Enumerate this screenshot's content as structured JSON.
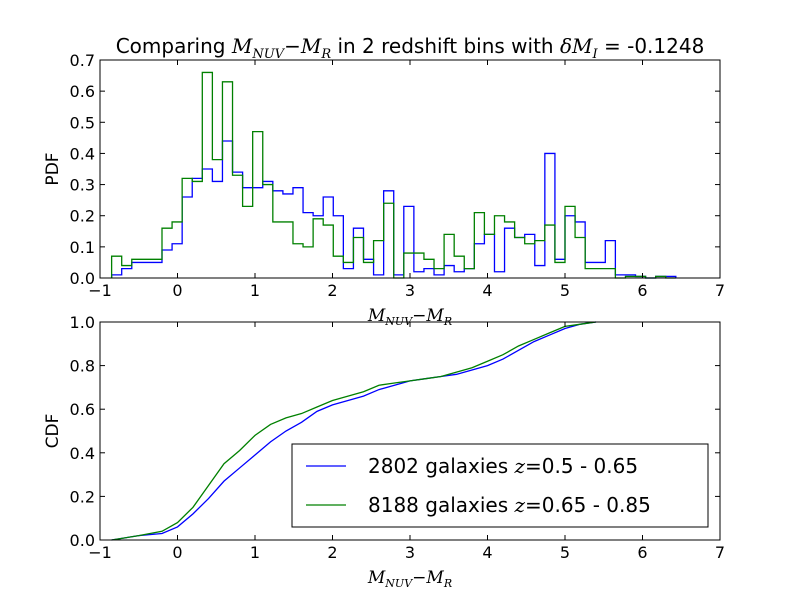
{
  "figure": {
    "title_prefix": "Comparing ",
    "title_math": "M",
    "title_math_sub1": "NUV",
    "title_math_minus": "−",
    "title_math_m2": "M",
    "title_math_sub2": "R",
    "title_middle": " in 2 redshift bins with ",
    "title_delta": "δM",
    "title_delta_sub": "I",
    "title_suffix": " = -0.1248"
  },
  "colors": {
    "blue": "#0000ff",
    "green": "#008000",
    "axes": "#000000",
    "background": "#ffffff"
  },
  "chart_data": [
    {
      "type": "bar",
      "subtype": "step-histogram",
      "ylabel": "PDF",
      "xlabel_parts": {
        "m1": "M",
        "sub1": "NUV",
        "minus": "−",
        "m2": "M",
        "sub2": "R"
      },
      "xlim": [
        -1,
        7
      ],
      "ylim": [
        0,
        0.7
      ],
      "xticks": [
        "−1",
        "0",
        "1",
        "2",
        "3",
        "4",
        "5",
        "6",
        "7"
      ],
      "yticks": [
        "0.0",
        "0.1",
        "0.2",
        "0.3",
        "0.4",
        "0.5",
        "0.6",
        "0.7"
      ],
      "bin_edges": [
        -0.85,
        -0.72,
        -0.59,
        -0.46,
        -0.33,
        -0.2,
        -0.07,
        0.06,
        0.19,
        0.32,
        0.45,
        0.58,
        0.71,
        0.84,
        0.97,
        1.1,
        1.23,
        1.36,
        1.49,
        1.62,
        1.75,
        1.88,
        2.01,
        2.14,
        2.27,
        2.4,
        2.53,
        2.66,
        2.79,
        2.92,
        3.05,
        3.18,
        3.31,
        3.44,
        3.57,
        3.7,
        3.83,
        3.96,
        4.09,
        4.22,
        4.35,
        4.48,
        4.61,
        4.74,
        4.87,
        5.0,
        5.13,
        5.26,
        5.39,
        5.52,
        5.65,
        5.78,
        5.91,
        6.04,
        6.17,
        6.3,
        6.43
      ],
      "series": [
        {
          "color": "blue",
          "values": [
            0.01,
            0.03,
            0.05,
            0.05,
            0.05,
            0.09,
            0.11,
            0.26,
            0.32,
            0.35,
            0.31,
            0.44,
            0.34,
            0.29,
            0.29,
            0.31,
            0.28,
            0.27,
            0.29,
            0.21,
            0.2,
            0.26,
            0.2,
            0.03,
            0.16,
            0.06,
            0.01,
            0.28,
            0.01,
            0.23,
            0.02,
            0.03,
            0.01,
            0.04,
            0.02,
            0.03,
            0.11,
            0.14,
            0.02,
            0.16,
            0.13,
            0.14,
            0.04,
            0.4,
            0.06,
            0.2,
            0.18,
            0.05,
            0.05,
            0.12,
            0.01,
            0.01,
            0.005,
            0.0,
            0.005,
            0.005,
            0.0
          ]
        },
        {
          "color": "green",
          "values": [
            0.07,
            0.04,
            0.06,
            0.06,
            0.06,
            0.16,
            0.18,
            0.32,
            0.31,
            0.66,
            0.38,
            0.63,
            0.33,
            0.23,
            0.47,
            0.3,
            0.18,
            0.18,
            0.11,
            0.1,
            0.19,
            0.17,
            0.07,
            0.05,
            0.13,
            0.05,
            0.12,
            0.24,
            0.0,
            0.08,
            0.08,
            0.06,
            0.03,
            0.14,
            0.07,
            0.03,
            0.21,
            0.14,
            0.2,
            0.18,
            0.13,
            0.11,
            0.12,
            0.17,
            0.05,
            0.23,
            0.13,
            0.03,
            0.03,
            0.03,
            0.0,
            0.005,
            0.005,
            0.0,
            0.005,
            0.0,
            0.0
          ]
        }
      ]
    },
    {
      "type": "line",
      "ylabel": "CDF",
      "xlabel_parts": {
        "m1": "M",
        "sub1": "NUV",
        "minus": "−",
        "m2": "M",
        "sub2": "R"
      },
      "xlim": [
        -1,
        7
      ],
      "ylim": [
        0,
        1
      ],
      "xticks": [
        "−1",
        "0",
        "1",
        "2",
        "3",
        "4",
        "5",
        "6",
        "7"
      ],
      "yticks": [
        "0.0",
        "0.2",
        "0.4",
        "0.6",
        "0.8",
        "1.0"
      ],
      "legend_position": "lower-right",
      "series": [
        {
          "color": "blue",
          "legend_prefix": "2802 galaxies ",
          "legend_z": "z",
          "legend_range": "=0.5 - 0.65",
          "x": [
            -0.85,
            -0.5,
            -0.2,
            0.0,
            0.2,
            0.4,
            0.6,
            0.8,
            1.0,
            1.2,
            1.4,
            1.6,
            1.8,
            2.0,
            2.2,
            2.4,
            2.6,
            2.8,
            3.0,
            3.2,
            3.4,
            3.6,
            3.8,
            4.0,
            4.2,
            4.4,
            4.6,
            4.8,
            5.0,
            5.2,
            5.4
          ],
          "y": [
            0.0,
            0.02,
            0.03,
            0.06,
            0.12,
            0.19,
            0.27,
            0.33,
            0.39,
            0.45,
            0.5,
            0.54,
            0.59,
            0.62,
            0.64,
            0.66,
            0.69,
            0.71,
            0.73,
            0.74,
            0.75,
            0.76,
            0.78,
            0.8,
            0.83,
            0.87,
            0.91,
            0.94,
            0.97,
            0.99,
            1.0
          ]
        },
        {
          "color": "green",
          "legend_prefix": "8188 galaxies ",
          "legend_z": "z",
          "legend_range": "=0.65 - 0.85",
          "x": [
            -0.85,
            -0.5,
            -0.2,
            0.0,
            0.2,
            0.4,
            0.6,
            0.8,
            1.0,
            1.2,
            1.4,
            1.6,
            1.8,
            2.0,
            2.2,
            2.4,
            2.6,
            2.8,
            3.0,
            3.2,
            3.4,
            3.6,
            3.8,
            4.0,
            4.2,
            4.4,
            4.6,
            4.8,
            5.0,
            5.2,
            5.4
          ],
          "y": [
            0.0,
            0.02,
            0.04,
            0.08,
            0.15,
            0.25,
            0.35,
            0.41,
            0.48,
            0.53,
            0.56,
            0.58,
            0.61,
            0.64,
            0.66,
            0.68,
            0.71,
            0.72,
            0.73,
            0.74,
            0.75,
            0.77,
            0.79,
            0.82,
            0.85,
            0.89,
            0.92,
            0.95,
            0.98,
            0.99,
            1.0
          ]
        }
      ]
    }
  ]
}
